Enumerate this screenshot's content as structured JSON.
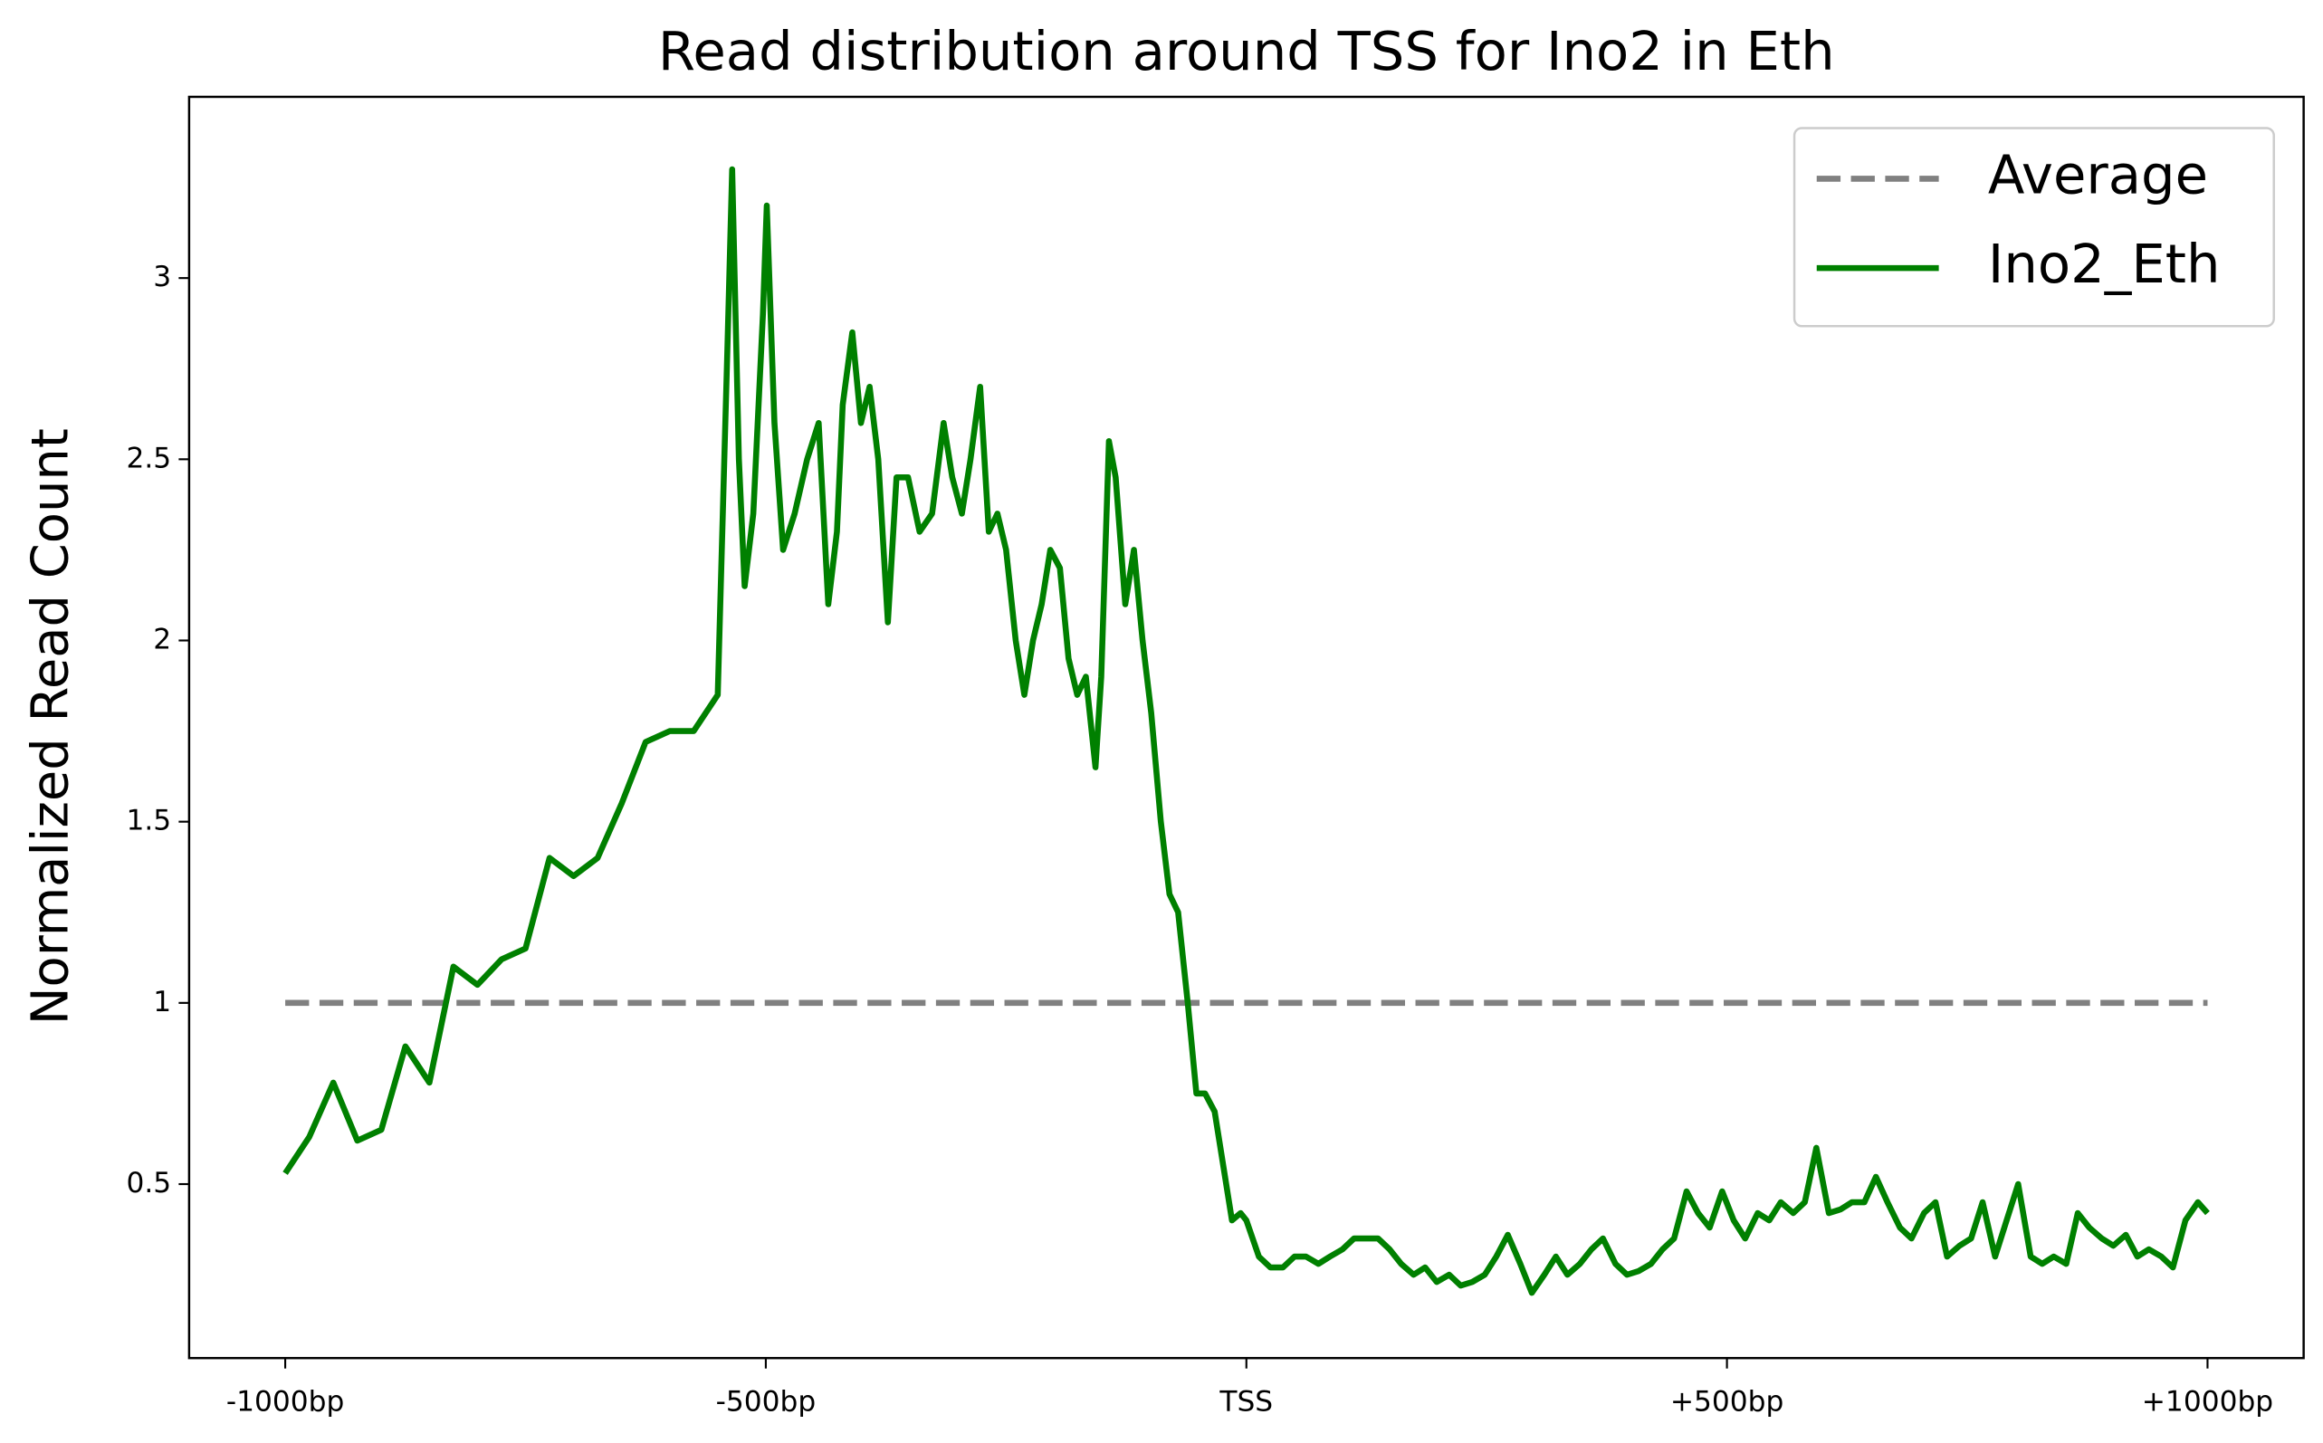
{
  "chart_data": {
    "type": "line",
    "title": "Read distribution around TSS for Ino2 in Eth",
    "y_label": "Normalized Read Count",
    "xlim": [
      -1100,
      1100
    ],
    "ylim": [
      0.02,
      3.5
    ],
    "xticks": [
      {
        "value": -1000,
        "label": "-1000bp"
      },
      {
        "value": -500,
        "label": "-500bp"
      },
      {
        "value": 0,
        "label": "TSS"
      },
      {
        "value": 500,
        "label": "+500bp"
      },
      {
        "value": 1000,
        "label": "+1000bp"
      }
    ],
    "yticks": [
      0.5,
      1.0,
      1.5,
      2.0,
      2.5,
      3.0
    ],
    "legend": "upper right",
    "series": [
      {
        "name": "Average",
        "color": "#808080",
        "dashed": true,
        "x": [
          -1000,
          1000
        ],
        "values": [
          1.0,
          1.0
        ]
      },
      {
        "name": "Ino2_Eth",
        "color": "#008000",
        "dashed": false,
        "x": [
          -1000,
          -975,
          -950,
          -925,
          -900,
          -875,
          -850,
          -825,
          -800,
          -775,
          -750,
          -725,
          -700,
          -675,
          -650,
          -625,
          -600,
          -575,
          -550,
          -540,
          -535,
          -528,
          -522,
          -513,
          -503,
          -499,
          -491,
          -482,
          -470,
          -457,
          -445,
          -435,
          -426,
          -420,
          -410,
          -401,
          -392,
          -383,
          -373,
          -364,
          -352,
          -340,
          -327,
          -315,
          -306,
          -296,
          -287,
          -277,
          -268,
          -259,
          -250,
          -240,
          -231,
          -222,
          -213,
          -204,
          -194,
          -185,
          -176,
          -167,
          -157,
          -151,
          -143,
          -136,
          -126,
          -117,
          -108,
          -99,
          -89,
          -80,
          -71,
          -61,
          -52,
          -43,
          -33,
          -24,
          -15,
          -6,
          0,
          13,
          25,
          38,
          50,
          62,
          75,
          87,
          100,
          112,
          124,
          137,
          149,
          161,
          174,
          186,
          198,
          211,
          223,
          235,
          248,
          260,
          272,
          285,
          297,
          310,
          322,
          334,
          347,
          359,
          371,
          384,
          396,
          408,
          421,
          433,
          445,
          458,
          470,
          482,
          495,
          507,
          519,
          532,
          544,
          556,
          569,
          581,
          593,
          606,
          618,
          630,
          643,
          655,
          667,
          680,
          692,
          705,
          717,
          729,
          742,
          754,
          766,
          779,
          791,
          803,
          816,
          828,
          840,
          853,
          865,
          877,
          890,
          902,
          915,
          927,
          939,
          952,
          964,
          977,
          990,
          1000
        ],
        "values": [
          0.53,
          0.63,
          0.78,
          0.62,
          0.65,
          0.88,
          0.78,
          1.1,
          1.05,
          1.12,
          1.15,
          1.4,
          1.35,
          1.4,
          1.55,
          1.72,
          1.75,
          1.75,
          1.85,
          2.8,
          3.3,
          2.5,
          2.15,
          2.35,
          2.9,
          3.2,
          2.6,
          2.25,
          2.35,
          2.5,
          2.6,
          2.1,
          2.3,
          2.65,
          2.85,
          2.6,
          2.7,
          2.5,
          2.05,
          2.45,
          2.45,
          2.3,
          2.35,
          2.6,
          2.45,
          2.35,
          2.5,
          2.7,
          2.3,
          2.35,
          2.25,
          2.0,
          1.85,
          2.0,
          2.1,
          2.25,
          2.2,
          1.95,
          1.85,
          1.9,
          1.65,
          1.9,
          2.55,
          2.45,
          2.1,
          2.25,
          2.0,
          1.8,
          1.5,
          1.3,
          1.25,
          1.0,
          0.75,
          0.75,
          0.7,
          0.55,
          0.4,
          0.42,
          0.4,
          0.3,
          0.27,
          0.27,
          0.3,
          0.3,
          0.28,
          0.3,
          0.32,
          0.35,
          0.35,
          0.35,
          0.32,
          0.28,
          0.25,
          0.27,
          0.23,
          0.25,
          0.22,
          0.23,
          0.25,
          0.3,
          0.36,
          0.28,
          0.2,
          0.25,
          0.3,
          0.25,
          0.28,
          0.32,
          0.35,
          0.28,
          0.25,
          0.26,
          0.28,
          0.32,
          0.35,
          0.48,
          0.42,
          0.38,
          0.48,
          0.4,
          0.35,
          0.42,
          0.4,
          0.45,
          0.42,
          0.45,
          0.6,
          0.42,
          0.43,
          0.45,
          0.45,
          0.52,
          0.45,
          0.38,
          0.35,
          0.42,
          0.45,
          0.3,
          0.33,
          0.35,
          0.45,
          0.3,
          0.4,
          0.5,
          0.3,
          0.28,
          0.3,
          0.28,
          0.42,
          0.38,
          0.35,
          0.33,
          0.36,
          0.3,
          0.32,
          0.3,
          0.27,
          0.4,
          0.45,
          0.42
        ]
      }
    ]
  }
}
